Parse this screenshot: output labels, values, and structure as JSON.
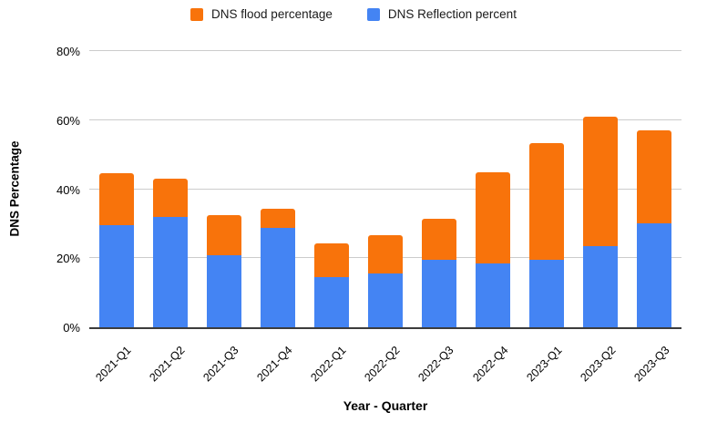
{
  "chart_data": {
    "type": "bar",
    "stacked": true,
    "title": "",
    "xlabel": "Year - Quarter",
    "ylabel": "DNS Percentage",
    "ylim": [
      0,
      80
    ],
    "yticks": [
      0,
      20,
      40,
      60,
      80
    ],
    "ytick_suffix": "%",
    "grid": true,
    "legend_position": "top-center",
    "categories": [
      "2021-Q1",
      "2021-Q2",
      "2021-Q3",
      "2021-Q4",
      "2022-Q1",
      "2022-Q2",
      "2022-Q3",
      "2022-Q4",
      "2023-Q1",
      "2023-Q2",
      "2023-Q3"
    ],
    "series": [
      {
        "name": "DNS flood percentage",
        "color": "#F8730B",
        "stack_position": "top",
        "values": [
          14.8,
          11.1,
          11.5,
          5.6,
          9.8,
          11.1,
          11.7,
          26.4,
          33.8,
          37.3,
          27.0
        ]
      },
      {
        "name": "DNS Reflection percent",
        "color": "#4484F3",
        "stack_position": "bottom",
        "values": [
          29.7,
          31.9,
          20.9,
          28.8,
          14.5,
          15.7,
          19.6,
          18.5,
          19.5,
          23.6,
          30.1
        ]
      }
    ],
    "stacked_totals": [
      44.5,
      43.0,
      32.4,
      34.4,
      24.3,
      26.8,
      31.3,
      44.9,
      53.3,
      60.9,
      57.1
    ]
  },
  "colors": {
    "gridline": "#cccccc",
    "axis_line": "#3c3c3c",
    "text": "#000000",
    "background": "#ffffff"
  }
}
